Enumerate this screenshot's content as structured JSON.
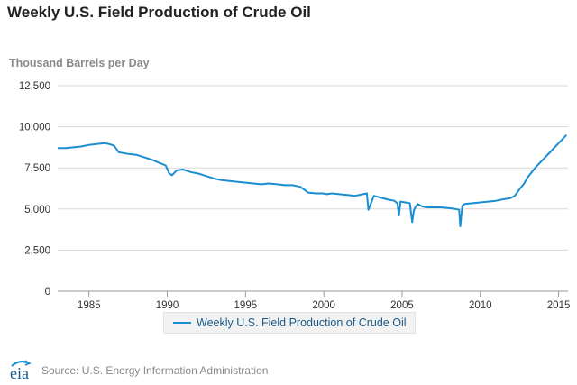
{
  "header": {
    "title": "Weekly U.S. Field Production of Crude Oil",
    "subtitle": "Thousand Barrels per Day"
  },
  "footer": {
    "logo_text": "eia",
    "source": "Source: U.S. Energy Information Administration"
  },
  "colors": {
    "series": "#1a8ed1",
    "grid": "#d8d8d8"
  },
  "chart_data": {
    "type": "line",
    "title": "Weekly U.S. Field Production of Crude Oil",
    "ylabel": "Thousand Barrels per Day",
    "xlabel": "",
    "xlim": [
      1983,
      2015.6
    ],
    "ylim": [
      0,
      12500
    ],
    "x_ticks": [
      1985,
      1990,
      1995,
      2000,
      2005,
      2010,
      2015
    ],
    "y_ticks": [
      0,
      2500,
      5000,
      7500,
      10000,
      12500
    ],
    "y_tick_labels": [
      "0",
      "2,500",
      "5,000",
      "7,500",
      "10,000",
      "12,500"
    ],
    "grid": true,
    "legend": "bottom",
    "series": [
      {
        "name": "Weekly U.S. Field Production of Crude Oil",
        "x": [
          1983.0,
          1983.5,
          1984.0,
          1984.5,
          1985.0,
          1985.5,
          1986.0,
          1986.3,
          1986.6,
          1986.9,
          1987.2,
          1987.5,
          1988.0,
          1988.5,
          1989.0,
          1989.5,
          1989.9,
          1990.1,
          1990.3,
          1990.6,
          1991.0,
          1991.5,
          1992.0,
          1992.5,
          1993.0,
          1993.5,
          1994.0,
          1994.5,
          1995.0,
          1995.5,
          1996.0,
          1996.5,
          1997.0,
          1997.5,
          1998.0,
          1998.5,
          1999.0,
          1999.5,
          1999.9,
          2000.2,
          2000.5,
          2001.0,
          2001.5,
          2002.0,
          2002.5,
          2002.75,
          2002.85,
          2003.2,
          2003.6,
          2004.0,
          2004.5,
          2004.7,
          2004.8,
          2004.9,
          2005.2,
          2005.5,
          2005.65,
          2005.75,
          2005.85,
          2006.0,
          2006.3,
          2006.6,
          2007.0,
          2007.5,
          2008.0,
          2008.4,
          2008.65,
          2008.72,
          2008.85,
          2009.0,
          2009.5,
          2010.0,
          2010.5,
          2011.0,
          2011.5,
          2011.9,
          2012.2,
          2012.5,
          2012.8,
          2013.0,
          2013.5,
          2014.0,
          2014.5,
          2015.0,
          2015.3,
          2015.5
        ],
        "values": [
          8700,
          8700,
          8750,
          8800,
          8900,
          8950,
          9000,
          8950,
          8850,
          8450,
          8400,
          8350,
          8300,
          8150,
          8000,
          7800,
          7650,
          7200,
          7050,
          7350,
          7400,
          7250,
          7150,
          7000,
          6850,
          6750,
          6700,
          6650,
          6600,
          6550,
          6500,
          6550,
          6500,
          6450,
          6450,
          6350,
          6000,
          5950,
          5950,
          5900,
          5950,
          5900,
          5850,
          5800,
          5900,
          5950,
          4950,
          5800,
          5700,
          5600,
          5500,
          5350,
          4600,
          5450,
          5400,
          5350,
          4200,
          4900,
          5100,
          5300,
          5150,
          5100,
          5100,
          5100,
          5050,
          5000,
          4950,
          3950,
          5200,
          5300,
          5350,
          5400,
          5450,
          5500,
          5600,
          5650,
          5800,
          6200,
          6550,
          6900,
          7500,
          8000,
          8500,
          9000,
          9300,
          9500
        ]
      }
    ]
  }
}
